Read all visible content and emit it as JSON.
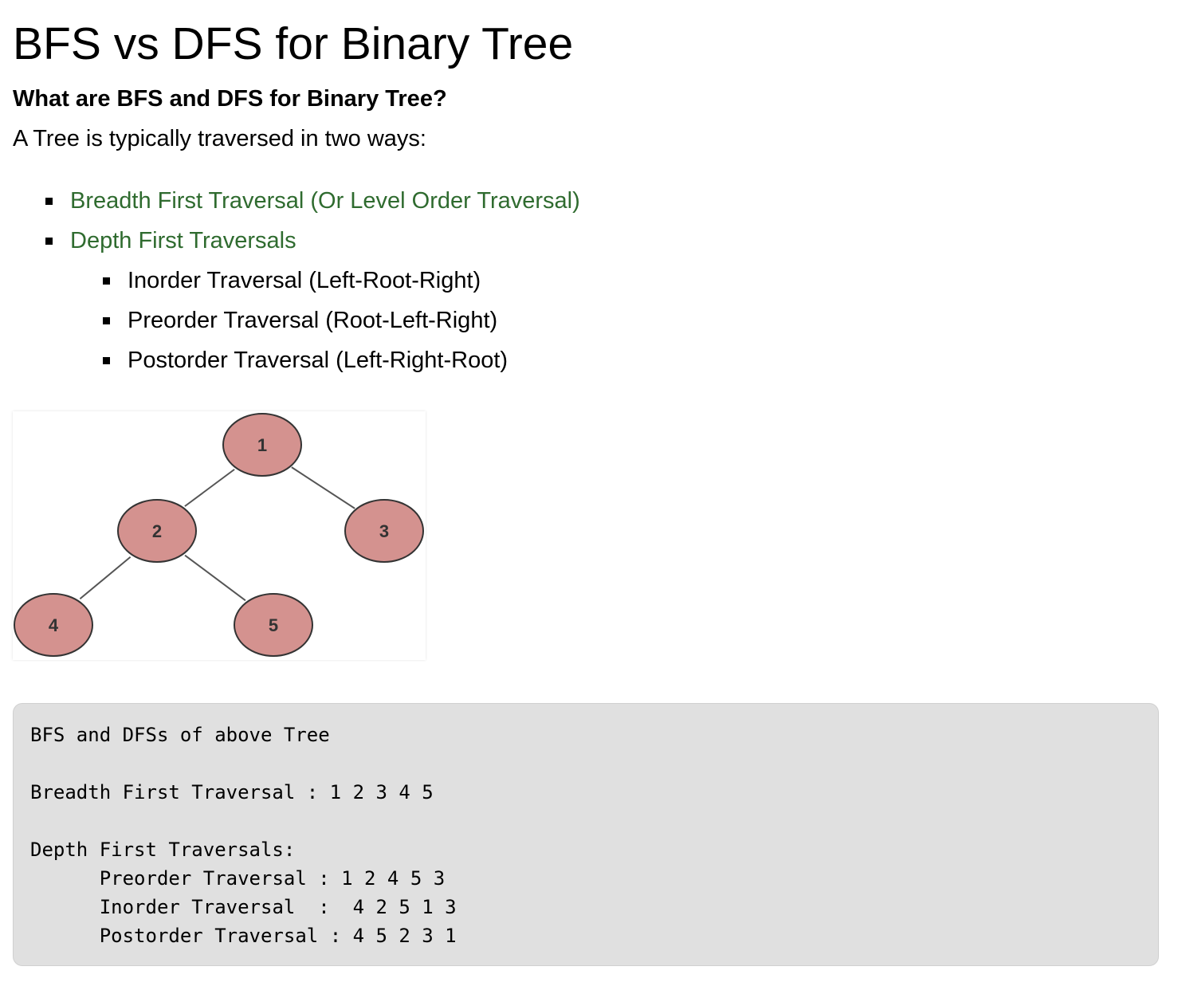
{
  "title": "BFS vs DFS for Binary Tree",
  "subtitle": "What are BFS and DFS for Binary Tree?",
  "intro": "A Tree is typically traversed in two ways:",
  "traversals": {
    "bfs_link": "Breadth First Traversal (Or Level Order Traversal)",
    "dfs_link": "Depth First Traversals",
    "dfs_items": [
      "Inorder Traversal (Left-Root-Right)",
      "Preorder Traversal (Root-Left-Right)",
      "Postorder Traversal (Left-Right-Root)"
    ]
  },
  "tree": {
    "nodes": [
      "1",
      "2",
      "3",
      "4",
      "5"
    ],
    "edges": [
      [
        "1",
        "2"
      ],
      [
        "1",
        "3"
      ],
      [
        "2",
        "4"
      ],
      [
        "2",
        "5"
      ]
    ],
    "node_fill": "#d4928f",
    "node_stroke": "#333333",
    "edge_color": "#555555"
  },
  "code": {
    "line1": "BFS and DFSs of above Tree",
    "line2": "Breadth First Traversal : 1 2 3 4 5",
    "line3": "Depth First Traversals:",
    "line4": "Preorder Traversal : 1 2 4 5 3",
    "line5": "Inorder Traversal  :  4 2 5 1 3",
    "line6": "Postorder Traversal : 4 5 2 3 1"
  },
  "colors": {
    "link": "#2f6b2f",
    "code_bg": "#e0e0e0"
  }
}
